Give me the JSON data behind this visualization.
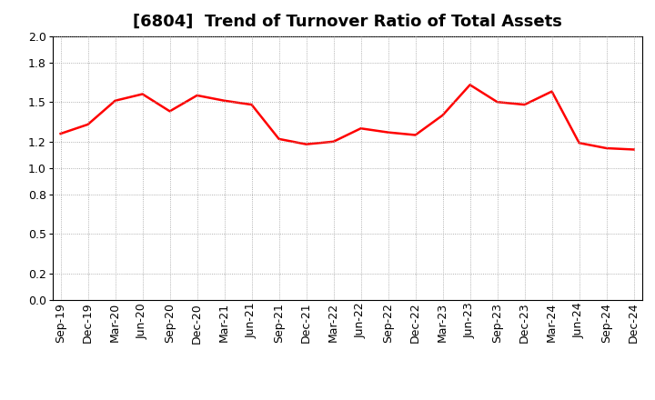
{
  "title": "[6804]  Trend of Turnover Ratio of Total Assets",
  "x_labels": [
    "Sep-19",
    "Dec-19",
    "Mar-20",
    "Jun-20",
    "Sep-20",
    "Dec-20",
    "Mar-21",
    "Jun-21",
    "Sep-21",
    "Dec-21",
    "Mar-22",
    "Jun-22",
    "Sep-22",
    "Dec-22",
    "Mar-23",
    "Jun-23",
    "Sep-23",
    "Dec-23",
    "Mar-24",
    "Jun-24",
    "Sep-24",
    "Dec-24"
  ],
  "values": [
    1.26,
    1.33,
    1.51,
    1.56,
    1.43,
    1.55,
    1.51,
    1.48,
    1.22,
    1.18,
    1.2,
    1.3,
    1.27,
    1.25,
    1.4,
    1.63,
    1.5,
    1.48,
    1.58,
    1.19,
    1.15,
    1.14
  ],
  "line_color": "#FF0000",
  "line_width": 1.8,
  "ylim": [
    0.0,
    2.0
  ],
  "yticks": [
    0.0,
    0.2,
    0.5,
    0.8,
    1.0,
    1.2,
    1.5,
    1.8,
    2.0
  ],
  "grid_color": "#999999",
  "grid_style": "dotted",
  "background_color": "#ffffff",
  "title_fontsize": 13,
  "tick_fontsize": 9,
  "fill": false
}
